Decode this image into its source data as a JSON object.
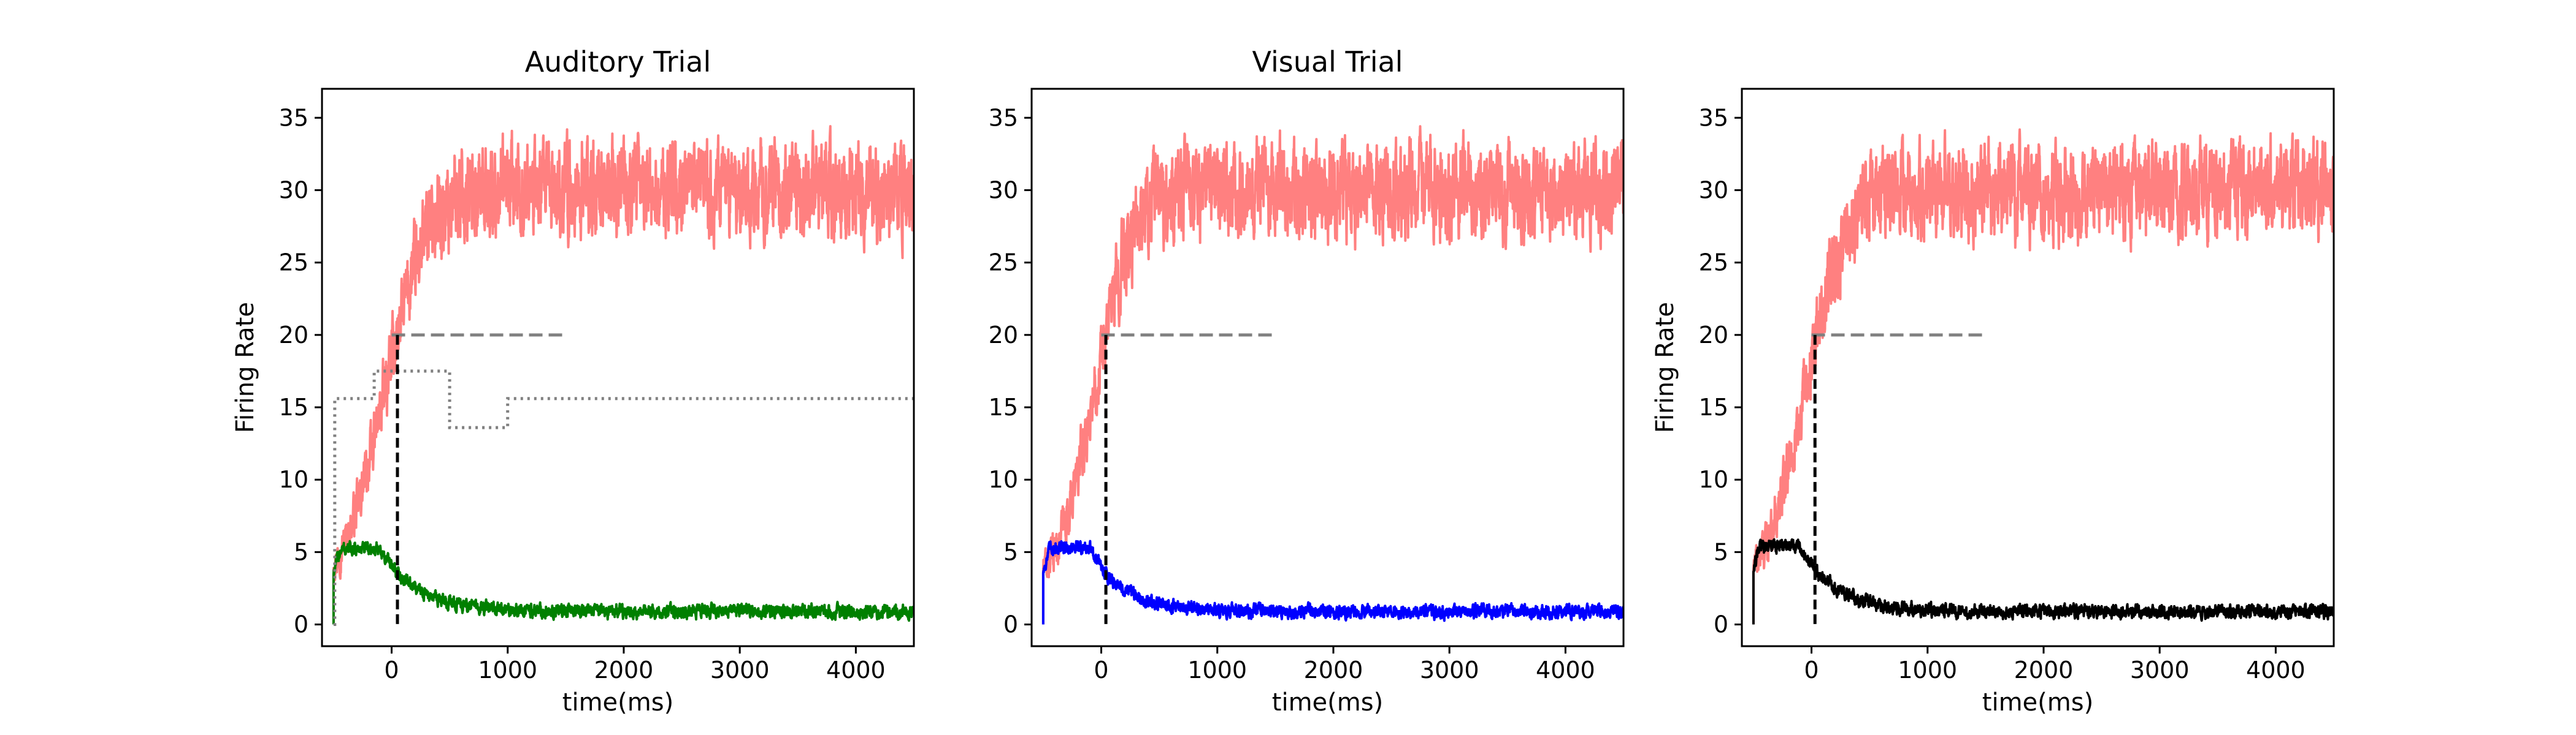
{
  "chart_data": [
    {
      "type": "line",
      "title": "Auditory Trial",
      "xlabel": "time(ms)",
      "ylabel": "Firing Rate",
      "xlim": [
        -600,
        4500
      ],
      "ylim": [
        -1.5,
        37
      ],
      "xticks": [
        0,
        1000,
        2000,
        3000,
        4000
      ],
      "yticks": [
        0,
        5,
        10,
        15,
        20,
        25,
        30,
        35
      ],
      "grid": false,
      "series": [
        {
          "style": "red-noisy",
          "color": "#ff8080",
          "start": -500,
          "baseline": 4,
          "plateau": 30,
          "t_half": -60,
          "tau": 190,
          "noise": 2.2
        },
        {
          "style": "low-noisy",
          "color": "#008000",
          "start": -500,
          "peak": 5.2,
          "baseline": 0.9,
          "decay_start": -100,
          "tau": 320,
          "noise": 0.35
        }
      ],
      "threshold": {
        "y": 20,
        "x_start": 0,
        "x_end": 1500,
        "color": "#808080"
      },
      "decision_time": 50,
      "input_signal": {
        "x": [
          -500,
          -490,
          -490,
          -150,
          -150,
          500,
          500,
          1000,
          1000,
          4500
        ],
        "y": [
          0,
          0,
          15.6,
          15.6,
          17.5,
          17.5,
          13.6,
          13.6,
          15.6,
          15.6
        ],
        "color": "#808080"
      }
    },
    {
      "type": "line",
      "title": "Visual Trial",
      "xlabel": "time(ms)",
      "ylabel": "",
      "xlim": [
        -600,
        4500
      ],
      "ylim": [
        -1.5,
        37
      ],
      "xticks": [
        0,
        1000,
        2000,
        3000,
        4000
      ],
      "yticks": [
        0,
        5,
        10,
        15,
        20,
        25,
        30,
        35
      ],
      "grid": false,
      "series": [
        {
          "style": "red-noisy",
          "color": "#ff8080",
          "start": -500,
          "baseline": 4,
          "plateau": 30,
          "t_half": -60,
          "tau": 170,
          "noise": 2.2
        },
        {
          "style": "low-noisy",
          "color": "#0000ff",
          "start": -500,
          "peak": 5.3,
          "baseline": 0.9,
          "decay_start": -100,
          "tau": 280,
          "noise": 0.35
        }
      ],
      "threshold": {
        "y": 20,
        "x_start": 0,
        "x_end": 1500,
        "color": "#808080"
      },
      "decision_time": 40,
      "input_signal": null
    },
    {
      "type": "line",
      "title": "",
      "xlabel": "time(ms)",
      "ylabel": "Firing Rate",
      "xlim": [
        -600,
        4500
      ],
      "ylim": [
        -1.5,
        37
      ],
      "xticks": [
        0,
        1000,
        2000,
        3000,
        4000
      ],
      "yticks": [
        0,
        5,
        10,
        15,
        20,
        25,
        30,
        35
      ],
      "grid": false,
      "series": [
        {
          "style": "red-noisy",
          "color": "#ff8080",
          "start": -500,
          "baseline": 4,
          "plateau": 30,
          "t_half": -60,
          "tau": 180,
          "noise": 2.2
        },
        {
          "style": "low-noisy",
          "color": "#000000",
          "start": -500,
          "peak": 5.4,
          "baseline": 0.9,
          "decay_start": -100,
          "tau": 300,
          "noise": 0.35
        }
      ],
      "threshold": {
        "y": 20,
        "x_start": 0,
        "x_end": 1500,
        "color": "#808080"
      },
      "decision_time": 30,
      "input_signal": null
    }
  ]
}
